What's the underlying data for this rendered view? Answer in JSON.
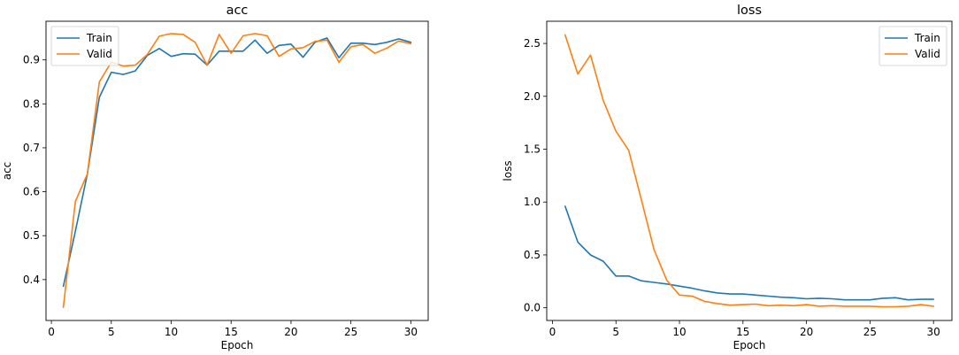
{
  "chart_data": [
    {
      "type": "line",
      "title": "acc",
      "xlabel": "Epoch",
      "ylabel": "acc",
      "xlim": [
        -0.45,
        31.45
      ],
      "ylim": [
        0.307,
        0.988
      ],
      "xticks": [
        0,
        5,
        10,
        15,
        20,
        25,
        30
      ],
      "yticks": [
        0.4,
        0.5,
        0.6,
        0.7,
        0.8,
        0.9
      ],
      "ytick_labels": [
        "0.4",
        "0.5",
        "0.6",
        "0.7",
        "0.8",
        "0.9"
      ],
      "grid": false,
      "legend_position": "top-left",
      "x": [
        1,
        2,
        3,
        4,
        5,
        6,
        7,
        8,
        9,
        10,
        11,
        12,
        13,
        14,
        15,
        16,
        17,
        18,
        19,
        20,
        21,
        22,
        23,
        24,
        25,
        26,
        27,
        28,
        29,
        30
      ],
      "series": [
        {
          "name": "Train",
          "color": "#1f77b4",
          "values": [
            0.385,
            0.51,
            0.64,
            0.815,
            0.872,
            0.867,
            0.875,
            0.91,
            0.926,
            0.908,
            0.914,
            0.913,
            0.888,
            0.92,
            0.92,
            0.92,
            0.945,
            0.915,
            0.933,
            0.936,
            0.906,
            0.94,
            0.95,
            0.905,
            0.938,
            0.938,
            0.935,
            0.94,
            0.948,
            0.94
          ]
        },
        {
          "name": "Valid",
          "color": "#ff7f0e",
          "values": [
            0.337,
            0.578,
            0.64,
            0.85,
            0.895,
            0.886,
            0.888,
            0.912,
            0.954,
            0.96,
            0.958,
            0.94,
            0.888,
            0.958,
            0.915,
            0.955,
            0.96,
            0.955,
            0.908,
            0.925,
            0.928,
            0.942,
            0.945,
            0.895,
            0.93,
            0.935,
            0.915,
            0.927,
            0.943,
            0.937
          ]
        }
      ]
    },
    {
      "type": "line",
      "title": "loss",
      "xlabel": "Epoch",
      "ylabel": "loss",
      "xlim": [
        -0.45,
        31.45
      ],
      "ylim": [
        -0.12,
        2.71
      ],
      "xticks": [
        0,
        5,
        10,
        15,
        20,
        25,
        30
      ],
      "yticks": [
        0.0,
        0.5,
        1.0,
        1.5,
        2.0,
        2.5
      ],
      "ytick_labels": [
        "0.0",
        "0.5",
        "1.0",
        "1.5",
        "2.0",
        "2.5"
      ],
      "grid": false,
      "legend_position": "top-right",
      "x": [
        1,
        2,
        3,
        4,
        5,
        6,
        7,
        8,
        9,
        10,
        11,
        12,
        13,
        14,
        15,
        16,
        17,
        18,
        19,
        20,
        21,
        22,
        23,
        24,
        25,
        26,
        27,
        28,
        29,
        30
      ],
      "series": [
        {
          "name": "Train",
          "color": "#1f77b4",
          "values": [
            0.96,
            0.62,
            0.5,
            0.44,
            0.3,
            0.3,
            0.255,
            0.24,
            0.225,
            0.205,
            0.185,
            0.16,
            0.14,
            0.13,
            0.13,
            0.12,
            0.11,
            0.1,
            0.095,
            0.085,
            0.09,
            0.085,
            0.075,
            0.075,
            0.075,
            0.09,
            0.095,
            0.075,
            0.08,
            0.08
          ]
        },
        {
          "name": "Valid",
          "color": "#ff7f0e",
          "values": [
            2.58,
            2.21,
            2.39,
            1.96,
            1.67,
            1.49,
            1.02,
            0.55,
            0.26,
            0.12,
            0.11,
            0.06,
            0.04,
            0.025,
            0.03,
            0.035,
            0.02,
            0.025,
            0.02,
            0.03,
            0.015,
            0.02,
            0.015,
            0.015,
            0.015,
            0.01,
            0.01,
            0.015,
            0.03,
            0.015
          ]
        }
      ]
    }
  ]
}
